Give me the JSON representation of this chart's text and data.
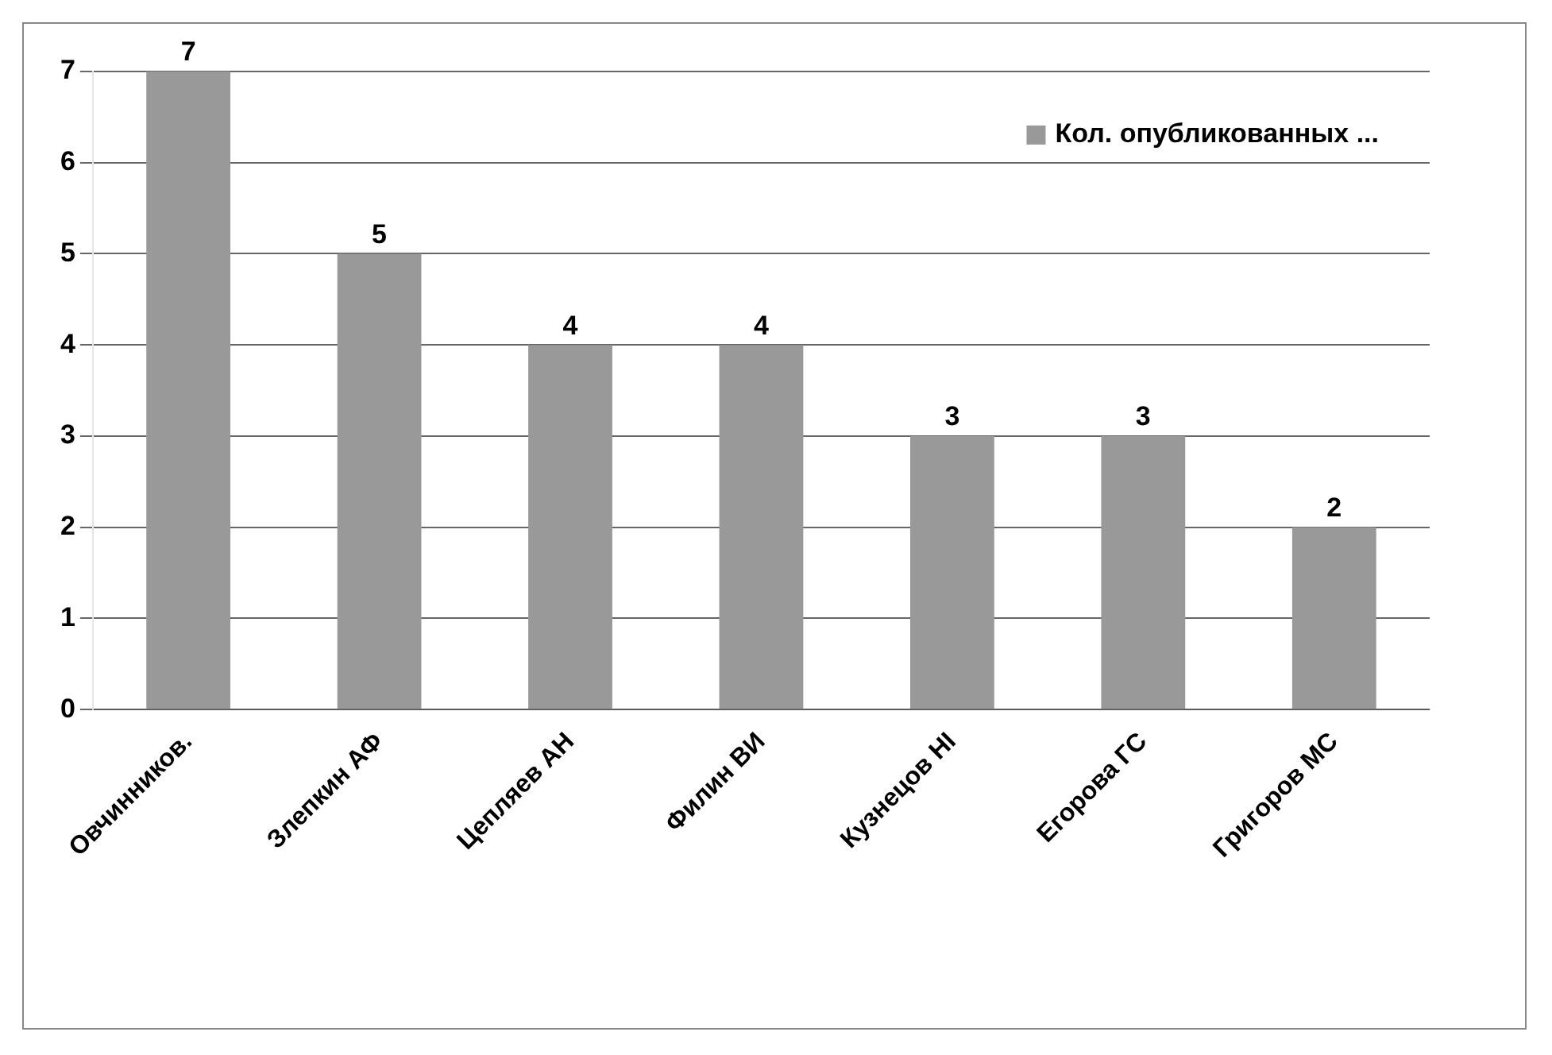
{
  "chart_data": {
    "type": "bar",
    "categories": [
      "Овчинников.",
      "Злепкин АФ",
      "Цепляев АН",
      "Филин ВИ",
      "Кузнецов НІ",
      "Егорова ГС",
      "Григоров МС"
    ],
    "series": [
      {
        "name": "Кол. опубликованных ...",
        "color": "#999999",
        "values": [
          7,
          5,
          4,
          4,
          3,
          3,
          2
        ]
      }
    ],
    "ylim": [
      0,
      7
    ],
    "yticks": [
      0,
      1,
      2,
      3,
      4,
      5,
      6,
      7
    ],
    "grid": "y",
    "legend": "top right",
    "data_labels": true
  }
}
